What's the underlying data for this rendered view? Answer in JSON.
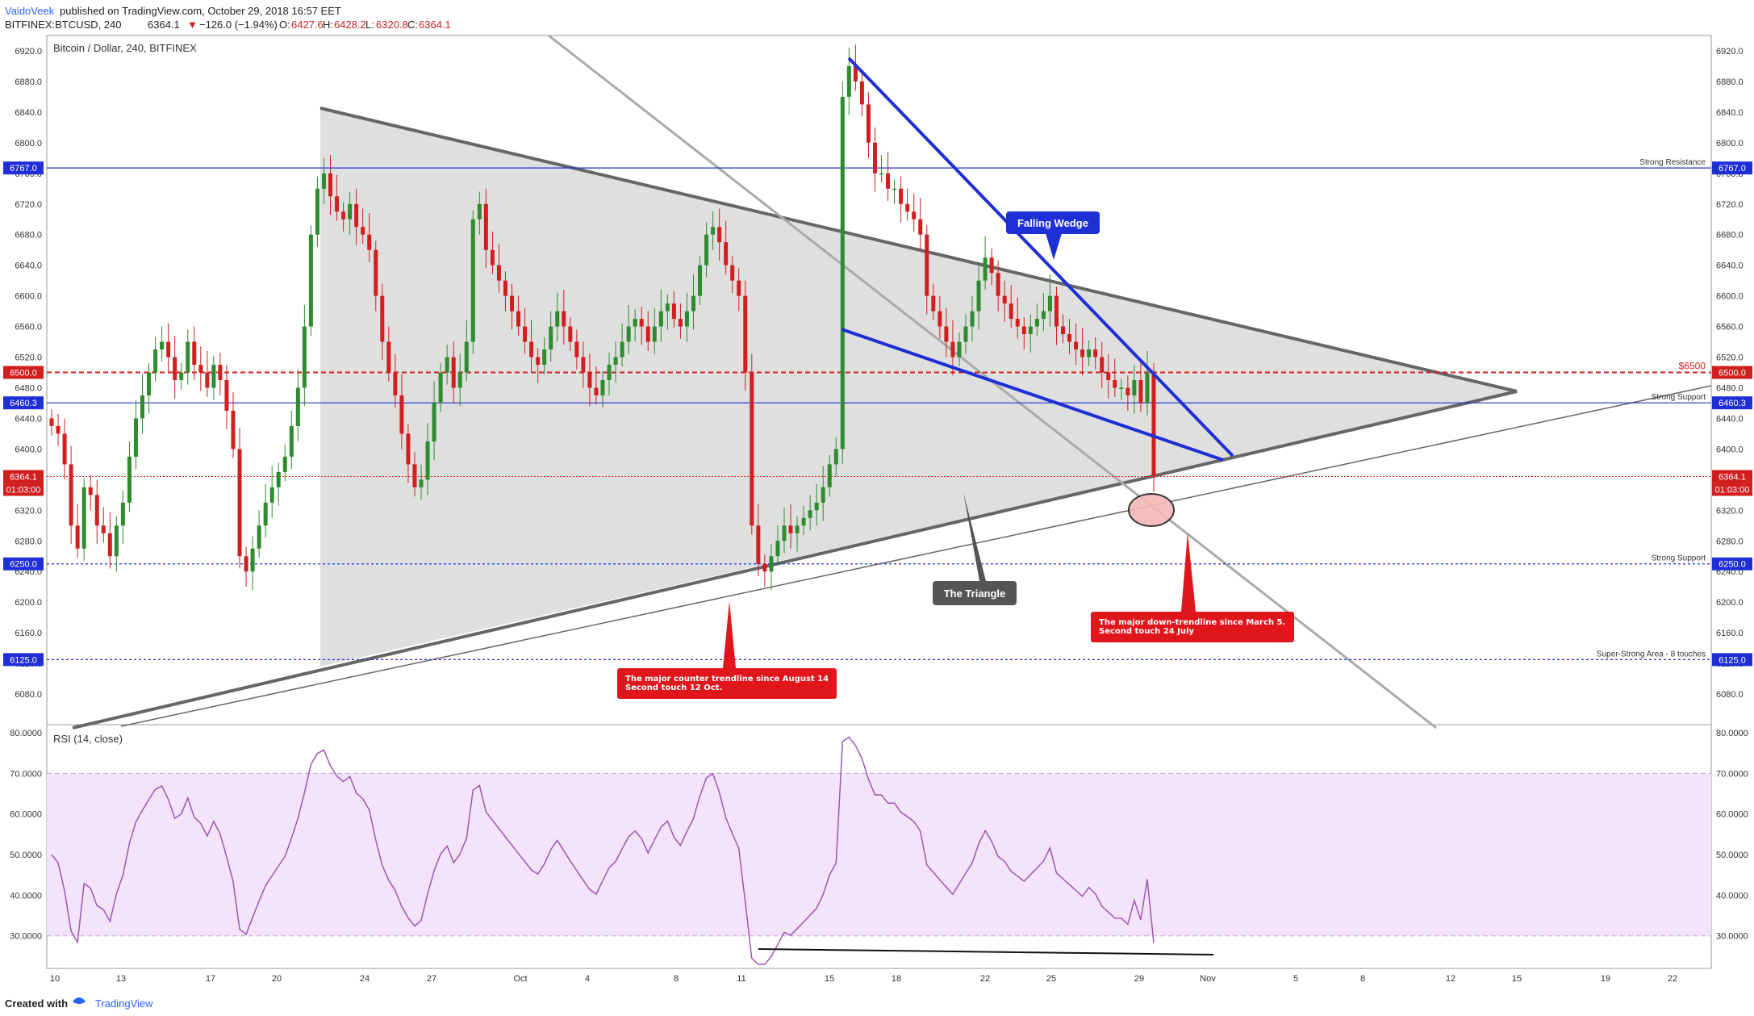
{
  "header": {
    "author": "VaidoVeek",
    "published": "published on TradingView.com, October 29, 2018 16:57 EET",
    "symbol": "BITFINEX:BTCUSD, 240",
    "last": "6364.1",
    "change": "−126.0 (−1.94%)",
    "o_label": "O:",
    "o_val": "6427.6",
    "h_label": "H:",
    "h_val": "6428.2",
    "l_label": "L:",
    "l_val": "6320.8",
    "c_label": "C:",
    "c_val": "6364.1"
  },
  "footer": {
    "created_with": "Created with",
    "brand": "TradingView"
  },
  "colors": {
    "up": "#2e8b2e",
    "down": "#d11f1f",
    "blue": "#1f2fd6",
    "rsi": "#9b59b6",
    "rsi_band": "#f3e3fb",
    "triangle": "#dcdcdc"
  },
  "chart_data": [
    {
      "type": "candlestick",
      "title": "Bitcoin / Dollar, 240, BITFINEX",
      "ylim": [
        6040,
        6940
      ],
      "y_ticks": [
        "6920.0",
        "6880.0",
        "6840.0",
        "6800.0",
        "6760.0",
        "6720.0",
        "6680.0",
        "6640.0",
        "6600.0",
        "6560.0",
        "6520.0",
        "6480.0",
        "6440.0",
        "6400.0",
        "6360.0",
        "6320.0",
        "6280.0",
        "6240.0",
        "6200.0",
        "6160.0",
        "6120.0",
        "6080.0"
      ],
      "x_ticks": [
        "10",
        "13",
        "17",
        "20",
        "24",
        "27",
        "Oct",
        "4",
        "8",
        "11",
        "15",
        "18",
        "22",
        "25",
        "29",
        "Nov",
        "5",
        "8",
        "12",
        "15",
        "19",
        "22"
      ],
      "price_tags": [
        {
          "value": 6767.0,
          "label": "6767.0",
          "color": "#1f2fd6"
        },
        {
          "value": 6500.0,
          "label": "6500.0",
          "color": "#d11f1f"
        },
        {
          "value": 6460.3,
          "label": "6460.3",
          "color": "#1f2fd6"
        },
        {
          "value": 6364.1,
          "label": "6364.1",
          "color": "#d11f1f"
        },
        {
          "value": 6250.0,
          "label": "6250.0",
          "color": "#1f2fd6"
        },
        {
          "value": 6125.0,
          "label": "6125.0",
          "color": "#1f2fd6"
        }
      ],
      "countdown": "01:03:00",
      "levels": [
        {
          "name": "Strong Resistance",
          "value": 6767.0
        },
        {
          "name": "$6500",
          "value": 6500.0
        },
        {
          "name": "Strong Support",
          "value": 6460.3
        },
        {
          "name": "Strong Support",
          "value": 6250.0
        },
        {
          "name": "Super-Strong Area - 8 touches",
          "value": 6125.0
        }
      ],
      "annotations": [
        {
          "text": "Falling Wedge",
          "color": "#1f2fd6"
        },
        {
          "text": "The Triangle",
          "color": "#555555"
        },
        {
          "text": "The major counter trendline since August 14\nSecond touch 12 Oct.",
          "color": "#e0161c"
        },
        {
          "text": "The major down-trendline since March 5.\nSecond touch 24 July",
          "color": "#e0161c"
        }
      ],
      "closes": [
        6430,
        6420,
        6380,
        6300,
        6270,
        6350,
        6340,
        6300,
        6290,
        6260,
        6300,
        6330,
        6390,
        6440,
        6470,
        6500,
        6530,
        6540,
        6520,
        6490,
        6500,
        6540,
        6510,
        6500,
        6480,
        6510,
        6490,
        6450,
        6400,
        6260,
        6240,
        6270,
        6300,
        6330,
        6350,
        6370,
        6390,
        6430,
        6480,
        6560,
        6680,
        6740,
        6760,
        6730,
        6710,
        6700,
        6720,
        6690,
        6680,
        6660,
        6600,
        6540,
        6500,
        6470,
        6420,
        6380,
        6350,
        6360,
        6410,
        6460,
        6500,
        6520,
        6480,
        6500,
        6540,
        6700,
        6720,
        6660,
        6640,
        6620,
        6600,
        6580,
        6560,
        6540,
        6520,
        6510,
        6530,
        6560,
        6580,
        6560,
        6540,
        6520,
        6500,
        6480,
        6470,
        6490,
        6510,
        6520,
        6540,
        6560,
        6570,
        6560,
        6540,
        6560,
        6580,
        6590,
        6570,
        6560,
        6580,
        6600,
        6640,
        6680,
        6690,
        6670,
        6640,
        6620,
        6600,
        6500,
        6300,
        6250,
        6240,
        6260,
        6280,
        6300,
        6290,
        6300,
        6310,
        6320,
        6330,
        6350,
        6380,
        6400,
        6860,
        6900,
        6880,
        6850,
        6800,
        6760,
        6760,
        6740,
        6740,
        6720,
        6710,
        6700,
        6680,
        6600,
        6580,
        6560,
        6540,
        6520,
        6540,
        6560,
        6580,
        6620,
        6650,
        6630,
        6600,
        6590,
        6570,
        6560,
        6550,
        6560,
        6570,
        6580,
        6600,
        6560,
        6550,
        6540,
        6530,
        6520,
        6530,
        6520,
        6500,
        6490,
        6480,
        6480,
        6470,
        6490,
        6460,
        6500,
        6364
      ],
      "rsi": {
        "title": "RSI (14, close)",
        "ylim": [
          22,
          82
        ],
        "y_ticks": [
          "80.0000",
          "70.0000",
          "60.0000",
          "50.0000",
          "40.0000",
          "30.0000"
        ],
        "band": [
          30,
          70
        ]
      }
    }
  ]
}
